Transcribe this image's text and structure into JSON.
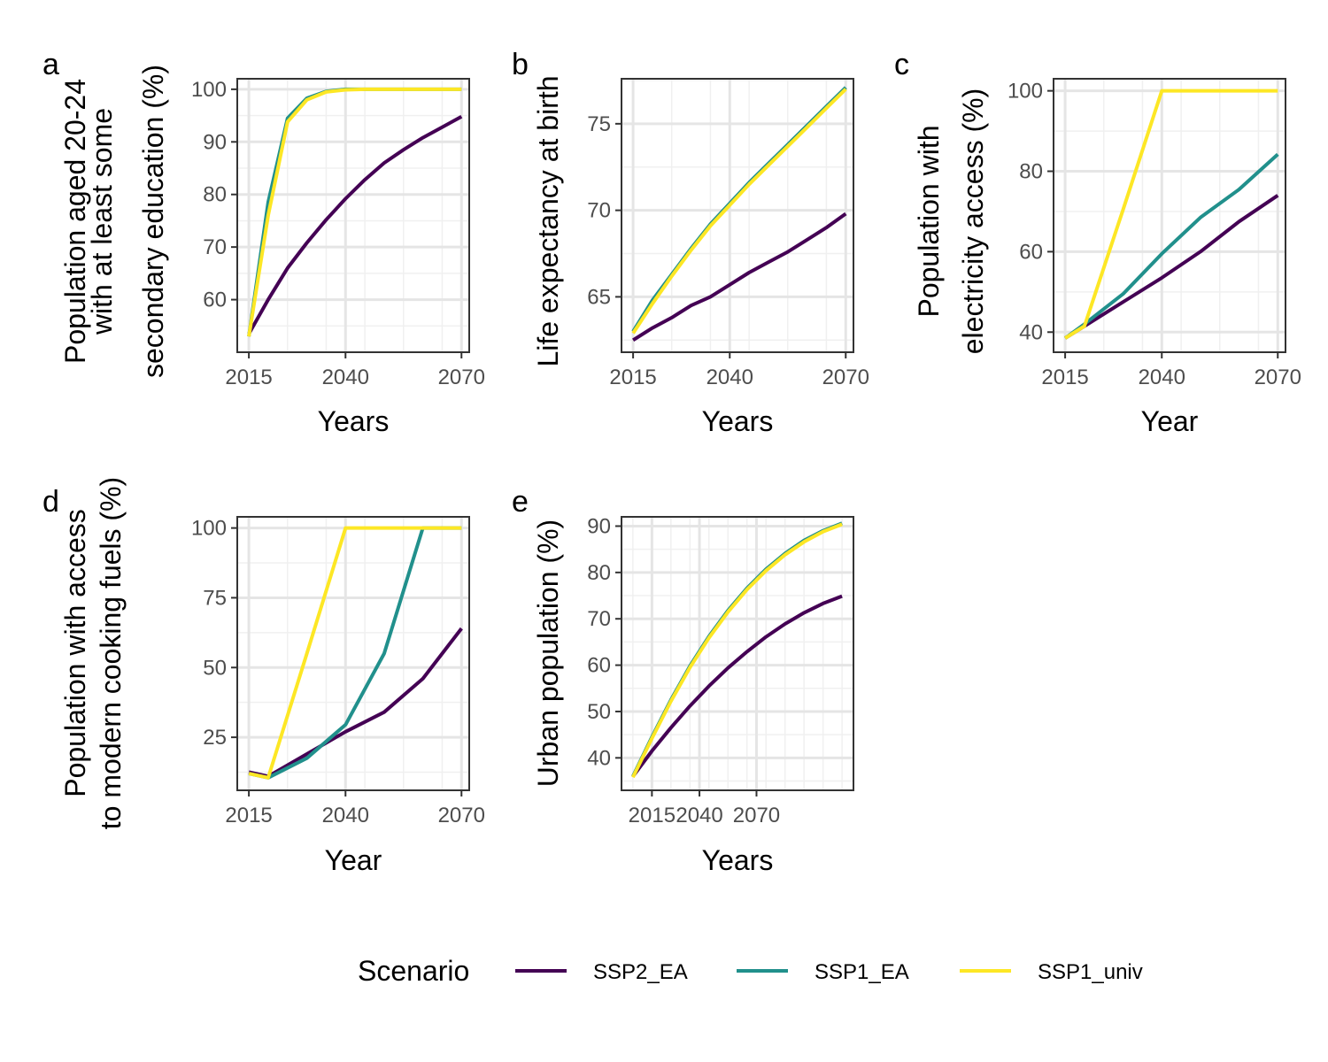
{
  "colors": {
    "SSP2_EA": "#440154",
    "SSP1_EA": "#21908C",
    "SSP1_univ": "#FDE725",
    "grid_major": "#e5e5e5",
    "grid_minor": "#f0f0f0",
    "panel_border": "#333333"
  },
  "legend": {
    "title": "Scenario",
    "items": [
      "SSP2_EA",
      "SSP1_EA",
      "SSP1_univ"
    ]
  },
  "chart_data": [
    {
      "panel": "a",
      "type": "line",
      "xlabel": "Years",
      "ylabel": [
        "Population aged 20-24",
        "with at least some",
        "secondary education (%)"
      ],
      "xlim": [
        2012,
        2072
      ],
      "ylim": [
        50,
        102
      ],
      "xticks": [
        2015,
        2040,
        2070
      ],
      "yticks": [
        60,
        70,
        80,
        90,
        100
      ],
      "series": [
        {
          "name": "SSP2_EA",
          "x": [
            2015,
            2020,
            2025,
            2030,
            2035,
            2040,
            2045,
            2050,
            2055,
            2060,
            2065,
            2070
          ],
          "values": [
            53.5,
            60,
            66,
            70.8,
            75.2,
            79.2,
            82.8,
            86,
            88.5,
            90.8,
            92.8,
            94.8
          ]
        },
        {
          "name": "SSP1_EA",
          "x": [
            2015,
            2020,
            2025,
            2030,
            2035,
            2040,
            2045,
            2050,
            2055,
            2060,
            2065,
            2070
          ],
          "values": [
            53,
            78.5,
            94.5,
            98.3,
            99.6,
            100,
            100,
            100,
            100,
            100,
            100,
            100
          ]
        },
        {
          "name": "SSP1_univ",
          "x": [
            2015,
            2020,
            2025,
            2030,
            2035,
            2040,
            2045,
            2050,
            2055,
            2060,
            2065,
            2070
          ],
          "values": [
            53,
            76,
            93.8,
            98,
            99.5,
            99.9,
            100,
            100,
            100,
            100,
            100,
            100
          ]
        }
      ]
    },
    {
      "panel": "b",
      "type": "line",
      "xlabel": "Years",
      "ylabel": [
        "Life expectancy at birth"
      ],
      "xlim": [
        2012,
        2072
      ],
      "ylim": [
        61.8,
        77.6
      ],
      "xticks": [
        2015,
        2040,
        2070
      ],
      "yticks": [
        65,
        70,
        75
      ],
      "series": [
        {
          "name": "SSP2_EA",
          "x": [
            2015,
            2020,
            2025,
            2030,
            2035,
            2040,
            2045,
            2050,
            2055,
            2060,
            2065,
            2070
          ],
          "values": [
            62.5,
            63.2,
            63.8,
            64.5,
            65.0,
            65.7,
            66.4,
            67.0,
            67.6,
            68.3,
            69.0,
            69.8
          ]
        },
        {
          "name": "SSP1_EA",
          "x": [
            2015,
            2020,
            2025,
            2030,
            2035,
            2040,
            2045,
            2050,
            2055,
            2060,
            2065,
            2070
          ],
          "values": [
            63.0,
            64.8,
            66.3,
            67.8,
            69.2,
            70.4,
            71.6,
            72.7,
            73.8,
            74.9,
            76.0,
            77.1
          ]
        },
        {
          "name": "SSP1_univ",
          "x": [
            2015,
            2020,
            2025,
            2030,
            2035,
            2040,
            2045,
            2050,
            2055,
            2060,
            2065,
            2070
          ],
          "values": [
            62.9,
            64.6,
            66.2,
            67.7,
            69.1,
            70.3,
            71.5,
            72.6,
            73.7,
            74.8,
            75.9,
            77.0
          ]
        }
      ]
    },
    {
      "panel": "c",
      "type": "line",
      "xlabel": "Year",
      "ylabel": [
        "Population with",
        "electricity access (%)"
      ],
      "xlim": [
        2012,
        2072
      ],
      "ylim": [
        35,
        103
      ],
      "xticks": [
        2015,
        2040,
        2070
      ],
      "yticks": [
        40,
        60,
        80,
        100
      ],
      "series": [
        {
          "name": "SSP2_EA",
          "x": [
            2015,
            2020,
            2030,
            2040,
            2050,
            2060,
            2070
          ],
          "values": [
            38.5,
            41.5,
            47.5,
            53.5,
            60,
            67.5,
            74
          ]
        },
        {
          "name": "SSP1_EA",
          "x": [
            2015,
            2020,
            2030,
            2040,
            2050,
            2060,
            2070
          ],
          "values": [
            38.5,
            42,
            49.5,
            59.5,
            68.5,
            75.5,
            84.2
          ]
        },
        {
          "name": "SSP1_univ",
          "x": [
            2015,
            2020,
            2030,
            2040,
            2050,
            2060,
            2070
          ],
          "values": [
            38.5,
            41.5,
            70.5,
            100,
            100,
            100,
            100
          ]
        }
      ]
    },
    {
      "panel": "d",
      "type": "line",
      "xlabel": "Year",
      "ylabel": [
        "Population with access",
        "to modern cooking fuels (%)"
      ],
      "xlim": [
        2012,
        2072
      ],
      "ylim": [
        6,
        104
      ],
      "xticks": [
        2015,
        2040,
        2070
      ],
      "yticks": [
        25,
        50,
        75,
        100
      ],
      "series": [
        {
          "name": "SSP2_EA",
          "x": [
            2015,
            2020,
            2030,
            2040,
            2050,
            2060,
            2070
          ],
          "values": [
            12.5,
            11,
            19,
            27,
            34,
            46,
            64
          ]
        },
        {
          "name": "SSP1_EA",
          "x": [
            2015,
            2020,
            2030,
            2040,
            2050,
            2060,
            2070
          ],
          "values": [
            12,
            10.5,
            17.5,
            29.5,
            55,
            100,
            100
          ]
        },
        {
          "name": "SSP1_univ",
          "x": [
            2015,
            2020,
            2030,
            2040,
            2050,
            2060,
            2070
          ],
          "values": [
            12,
            10.5,
            55,
            100,
            100,
            100,
            100
          ]
        }
      ]
    },
    {
      "panel": "e",
      "type": "line",
      "xlabel": "Years",
      "ylabel": [
        "Urban population (%)"
      ],
      "xlim": [
        1999,
        2121
      ],
      "ylim": [
        33,
        92
      ],
      "xticks": [
        2015,
        2040,
        2070
      ],
      "yticks": [
        40,
        50,
        60,
        70,
        80,
        90
      ],
      "series": [
        {
          "name": "SSP2_EA",
          "x": [
            2005,
            2015,
            2025,
            2035,
            2045,
            2055,
            2065,
            2075,
            2085,
            2095,
            2105,
            2115
          ],
          "values": [
            36,
            41.5,
            46.5,
            51.2,
            55.5,
            59.4,
            62.9,
            66.1,
            68.9,
            71.3,
            73.3,
            74.9
          ]
        },
        {
          "name": "SSP1_EA",
          "x": [
            2005,
            2015,
            2025,
            2035,
            2045,
            2055,
            2065,
            2075,
            2085,
            2095,
            2105,
            2115
          ],
          "values": [
            36,
            44.5,
            52.5,
            59.8,
            66.2,
            71.8,
            76.6,
            80.7,
            84.1,
            86.9,
            89.0,
            90.6
          ]
        },
        {
          "name": "SSP1_univ",
          "x": [
            2005,
            2015,
            2025,
            2035,
            2045,
            2055,
            2065,
            2075,
            2085,
            2095,
            2105,
            2115
          ],
          "values": [
            35.8,
            44.2,
            52.2,
            59.5,
            65.9,
            71.5,
            76.3,
            80.4,
            83.8,
            86.6,
            88.8,
            90.4
          ]
        }
      ]
    }
  ]
}
